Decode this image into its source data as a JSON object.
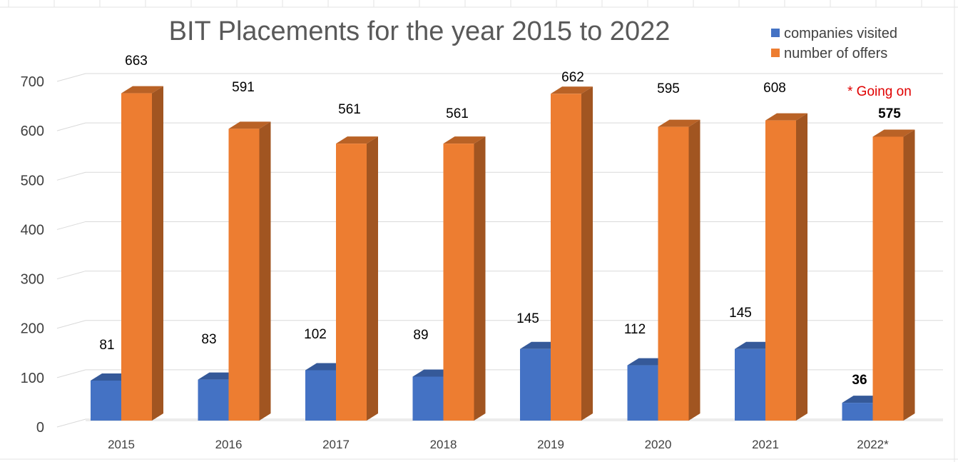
{
  "chart_data": {
    "type": "bar",
    "title": "BIT Placements for the year 2015 to 2022",
    "categories": [
      "2015",
      "2016",
      "2017",
      "2018",
      "2019",
      "2020",
      "2021",
      "2022*"
    ],
    "series": [
      {
        "name": "companies visited",
        "color": "#4472C4",
        "values": [
          81,
          83,
          102,
          89,
          145,
          112,
          145,
          36
        ],
        "labels": [
          "81",
          "83",
          "102",
          "89",
          "145",
          "112",
          "145",
          "36"
        ]
      },
      {
        "name": "number of offers",
        "color": "#ED7D31",
        "values": [
          663,
          591,
          561,
          561,
          662,
          595,
          608,
          575
        ],
        "labels": [
          "663",
          "591",
          "561",
          "561",
          "662",
          "595",
          "608",
          "575"
        ]
      }
    ],
    "ylim": [
      0,
      700
    ],
    "yticks": [
      "0",
      "100",
      "200",
      "300",
      "400",
      "500",
      "600",
      "700"
    ],
    "grid": true,
    "legend": "top-right",
    "annotation": {
      "text": "* Going on",
      "color": "#E00000"
    },
    "three_d": true
  }
}
